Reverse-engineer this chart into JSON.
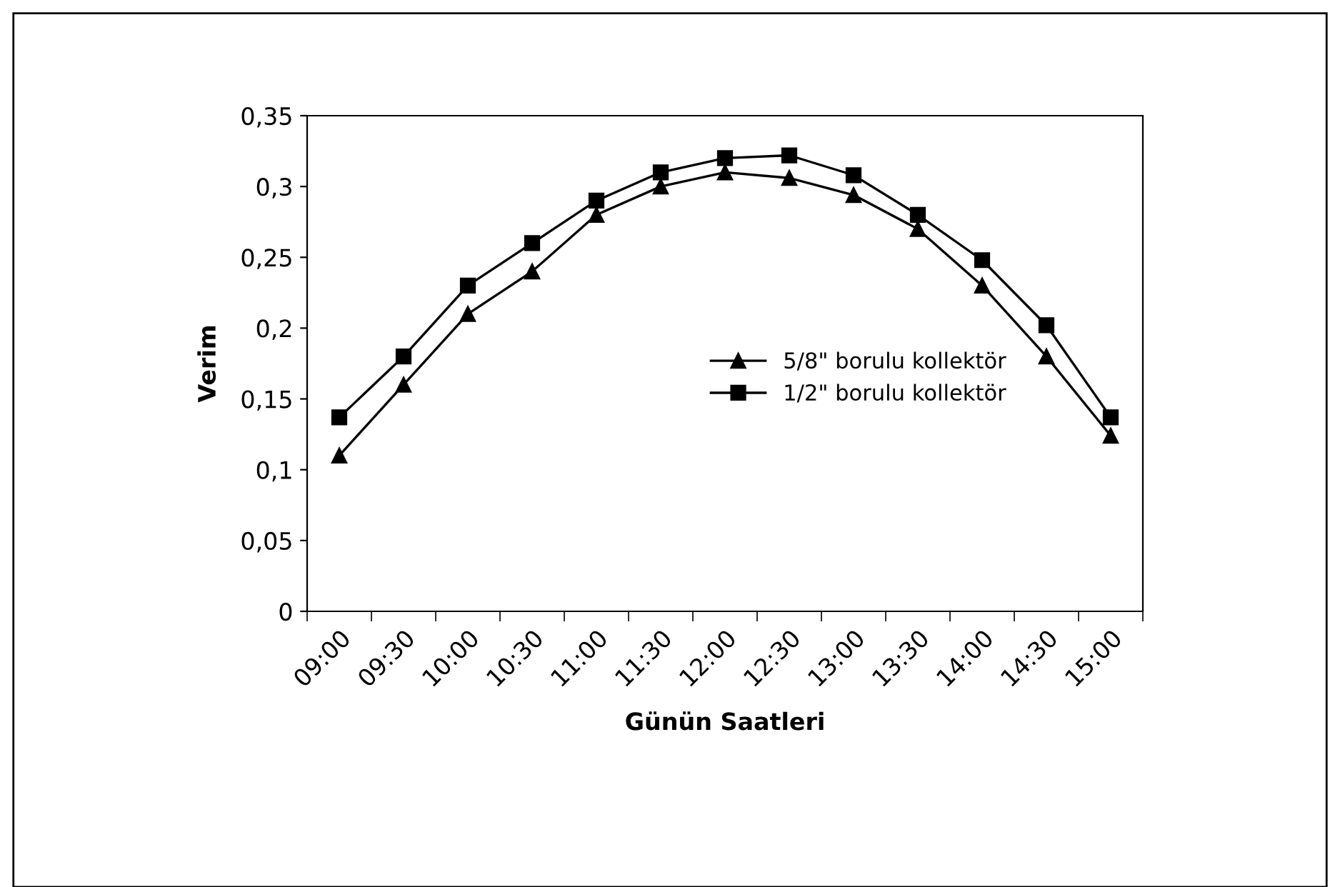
{
  "chart_data": {
    "type": "line",
    "xlabel": "Günün Saatleri",
    "ylabel": "Verim",
    "categories": [
      "09:00",
      "09:30",
      "10:00",
      "10:30",
      "11:00",
      "11:30",
      "12:00",
      "12:30",
      "13:00",
      "13:30",
      "14:00",
      "14:30",
      "15:00"
    ],
    "series": [
      {
        "name": "5/8\" borulu kollektör",
        "color": "#000000",
        "marker": "triangle",
        "values": [
          0.11,
          0.16,
          0.21,
          0.24,
          0.28,
          0.3,
          0.31,
          0.306,
          0.294,
          0.27,
          0.23,
          0.18,
          0.124
        ]
      },
      {
        "name": "1/2\" borulu kollektör",
        "color": "#000000",
        "marker": "square",
        "values": [
          0.137,
          0.18,
          0.23,
          0.26,
          0.29,
          0.31,
          0.32,
          0.322,
          0.308,
          0.28,
          0.248,
          0.202,
          0.137
        ]
      }
    ],
    "ylim": [
      0,
      0.35
    ],
    "yticks": [
      0,
      {
        "value": 0.05,
        "label": "0,05"
      },
      {
        "value": 0.1,
        "label": "0,1"
      },
      {
        "value": 0.15,
        "label": "0,15"
      },
      {
        "value": 0.2,
        "label": "0,2"
      },
      {
        "value": 0.25,
        "label": "0,25"
      },
      {
        "value": 0.3,
        "label": "0,3"
      },
      {
        "value": 0.35,
        "label": "0,35"
      }
    ],
    "grid": false,
    "legend": "center right",
    "line_style": "solid"
  }
}
